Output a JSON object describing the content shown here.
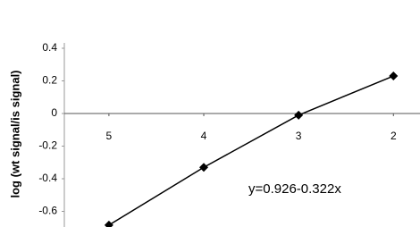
{
  "chart_data": {
    "type": "line",
    "y_label": "log (wt signal/is signal)",
    "annotation": "y=0.926-0.322x",
    "x": [
      5,
      4,
      3,
      2
    ],
    "values": [
      -0.684,
      -0.33,
      -0.01,
      0.23
    ],
    "color": "#000000",
    "xlim": [
      5.47,
      1.72
    ],
    "xticks": [
      5,
      4,
      3,
      2
    ],
    "ylim": [
      -0.7,
      0.4
    ],
    "yticks": [
      0.4,
      0.2,
      0,
      -0.2,
      -0.4,
      -0.6
    ],
    "grid": false
  }
}
